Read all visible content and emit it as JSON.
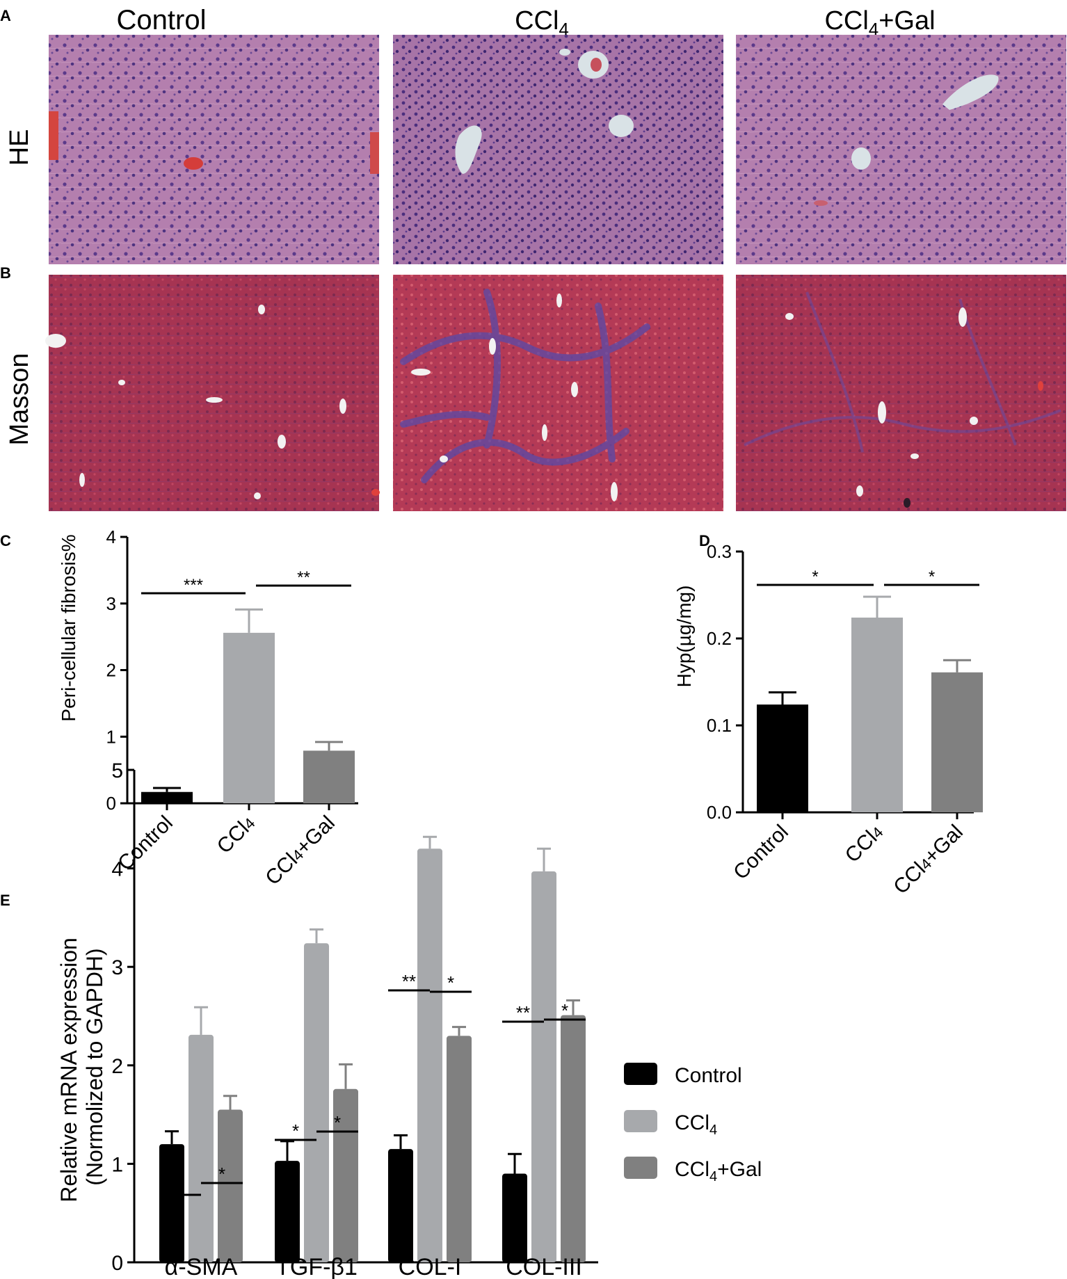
{
  "panels": {
    "A": "A",
    "B": "B",
    "C": "C",
    "D": "D",
    "E": "E"
  },
  "micrographs": {
    "columns": [
      "Control",
      "CCl",
      "CCl"
    ],
    "column_subscripts": [
      "",
      "4",
      "4"
    ],
    "column_suffixes": [
      "",
      "",
      "+Gal"
    ],
    "rows": [
      "HE",
      "Masson"
    ]
  },
  "colors": {
    "control": "#000000",
    "ccl4": "#a7a9ac",
    "ccl4_gal": "#808080",
    "he_tissue": "#8f5a9c",
    "masson_tissue": "#b23a5a"
  },
  "chart_data": [
    {
      "id": "C",
      "type": "bar",
      "ylabel": "Peri-cellular fibrosis%",
      "ylim": [
        0,
        4
      ],
      "yticks": [
        "0",
        "1",
        "2",
        "3",
        "4"
      ],
      "categories": [
        "Control",
        "CCl4",
        "CCl4+Gal"
      ],
      "values": [
        0.17,
        2.56,
        0.79
      ],
      "errors": [
        0.06,
        0.35,
        0.13
      ],
      "significance": [
        {
          "from": 0,
          "to": 1,
          "label": "***"
        },
        {
          "from": 1,
          "to": 2,
          "label": "**"
        }
      ]
    },
    {
      "id": "D",
      "type": "bar",
      "ylabel": "Hyp(µg/mg)",
      "ylim": [
        0,
        0.3
      ],
      "yticks": [
        "0.0",
        "0.1",
        "0.2",
        "0.3"
      ],
      "categories": [
        "Control",
        "CCl4",
        "CCl4+Gal"
      ],
      "values": [
        0.124,
        0.224,
        0.161
      ],
      "errors": [
        0.014,
        0.024,
        0.014
      ],
      "significance": [
        {
          "from": 0,
          "to": 1,
          "label": "*"
        },
        {
          "from": 1,
          "to": 2,
          "label": "*"
        }
      ]
    },
    {
      "id": "E",
      "type": "bar",
      "ylabel": "Relative mRNA expression",
      "ylabel2": "(Normolized to GAPDH)",
      "ylim": [
        0,
        5
      ],
      "yticks": [
        "0",
        "1",
        "2",
        "3",
        "4",
        "5"
      ],
      "categories": [
        "α-SMA",
        "TGF-β1",
        "COL-I",
        "COL-III"
      ],
      "series": [
        {
          "name": "Control",
          "values": [
            1.2,
            1.03,
            1.15,
            0.9
          ],
          "errors": [
            0.13,
            0.2,
            0.14,
            0.2
          ]
        },
        {
          "name": "CCl4",
          "values": [
            2.31,
            3.24,
            4.2,
            3.97
          ],
          "errors": [
            0.28,
            0.14,
            0.12,
            0.23
          ]
        },
        {
          "name": "CCl4+Gal",
          "values": [
            1.55,
            1.76,
            2.3,
            2.51
          ],
          "errors": [
            0.14,
            0.25,
            0.09,
            0.15
          ]
        }
      ],
      "significance": [
        {
          "group": 0,
          "from": 0,
          "to": 1,
          "label": "*"
        },
        {
          "group": 0,
          "from": 1,
          "to": 2,
          "label": "*"
        },
        {
          "group": 1,
          "from": 0,
          "to": 1,
          "label": "*"
        },
        {
          "group": 1,
          "from": 1,
          "to": 2,
          "label": "*"
        },
        {
          "group": 2,
          "from": 0,
          "to": 1,
          "label": "**"
        },
        {
          "group": 2,
          "from": 1,
          "to": 2,
          "label": "*"
        },
        {
          "group": 3,
          "from": 0,
          "to": 1,
          "label": "**"
        },
        {
          "group": 3,
          "from": 1,
          "to": 2,
          "label": "*"
        }
      ],
      "legend": [
        "Control",
        "CCl4",
        "CCl4+Gal"
      ],
      "legend_position": "right"
    }
  ]
}
